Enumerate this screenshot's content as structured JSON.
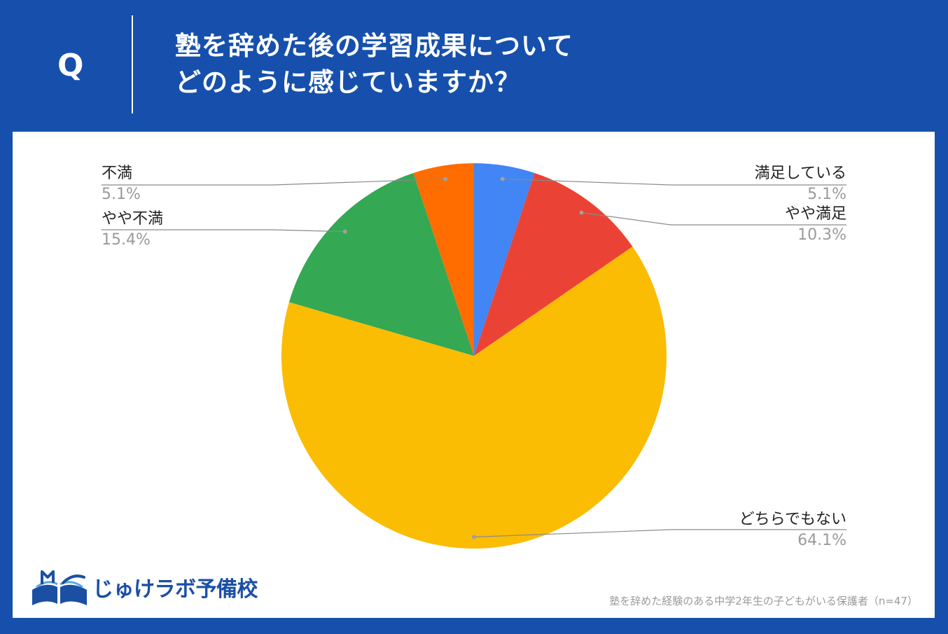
{
  "header": {
    "q_mark": "Q",
    "question_line1": "塾を辞めた後の学習成果について",
    "question_line2": "どのように感じていますか？"
  },
  "logo": {
    "text": "じゅけラボ予備校"
  },
  "note": "塾を辞めた経験のある中学2年生の子どもがいる保護者（n=47）",
  "chart_data": {
    "type": "pie",
    "slices": [
      {
        "label": "満足している",
        "value": 5.1,
        "display": "5.1%",
        "color": "#4285f4"
      },
      {
        "label": "やや満足",
        "value": 10.3,
        "display": "10.3%",
        "color": "#ea4335"
      },
      {
        "label": "どちらでもない",
        "value": 64.1,
        "display": "64.1%",
        "color": "#fbbc04"
      },
      {
        "label": "やや不満",
        "value": 15.4,
        "display": "15.4%",
        "color": "#34a853"
      },
      {
        "label": "不満",
        "value": 5.1,
        "display": "5.1%",
        "color": "#ff6d01"
      }
    ],
    "start": "12 o'clock",
    "direction": "clockwise",
    "legend": "none"
  }
}
